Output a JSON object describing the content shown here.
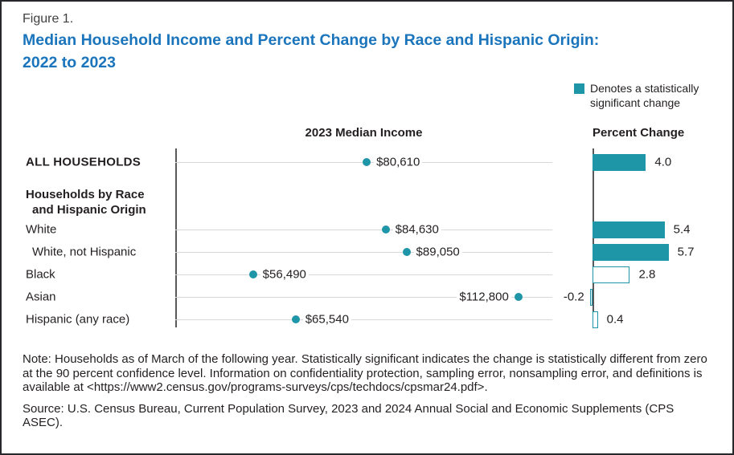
{
  "figure_label": "Figure 1.",
  "title": "Median Household Income and Percent Change by Race and Hispanic Origin: 2022 to 2023",
  "legend": {
    "text": "Denotes a statistically significant change",
    "swatch_color": "#1f96a8"
  },
  "panels": {
    "income_header": "2023 Median Income",
    "percent_header": "Percent Change"
  },
  "group_header": {
    "line1": "Households by Race",
    "line2": "and Hispanic Origin"
  },
  "colors": {
    "teal": "#1f96a8",
    "title_blue": "#1b75bc",
    "row_line": "#d8d8d8",
    "axis": "#58595b"
  },
  "chart_data": {
    "type": "bar",
    "title": "Median Household Income and Percent Change by Race and Hispanic Origin: 2022 to 2023",
    "categories": [
      "ALL HOUSEHOLDS",
      "White",
      "White, not Hispanic",
      "Black",
      "Asian",
      "Hispanic (any race)"
    ],
    "series": [
      {
        "name": "2023 Median Income",
        "values": [
          80610,
          84630,
          89050,
          56490,
          112800,
          65540
        ],
        "value_labels": [
          "$80,610",
          "$84,630",
          "$89,050",
          "$56,490",
          "$112,800",
          "$65,540"
        ]
      },
      {
        "name": "Percent Change",
        "values": [
          4.0,
          5.4,
          5.7,
          2.8,
          -0.2,
          0.4
        ],
        "value_labels": [
          "4.0",
          "5.4",
          "5.7",
          "2.8",
          "-0.2",
          "0.4"
        ],
        "statistically_significant": [
          true,
          true,
          true,
          false,
          false,
          false
        ]
      }
    ],
    "income_axis_range": [
      40000,
      120000
    ],
    "percent_axis_range": [
      -0.6,
      6.0
    ],
    "legend_note": "Denotes a statistically significant change"
  },
  "notes": {
    "note": "Note: Households as of March of the following year. Statistically significant indicates the change is statistically different from zero at the 90 percent confidence level. Information on confidentiality protection, sampling error, nonsampling error, and definitions is available at <https://www2.census.gov/programs-surveys/cps/techdocs/cpsmar24.pdf>.",
    "source": "Source: U.S. Census Bureau, Current Population Survey, 2023 and 2024 Annual Social and Economic Supplements (CPS ASEC)."
  }
}
